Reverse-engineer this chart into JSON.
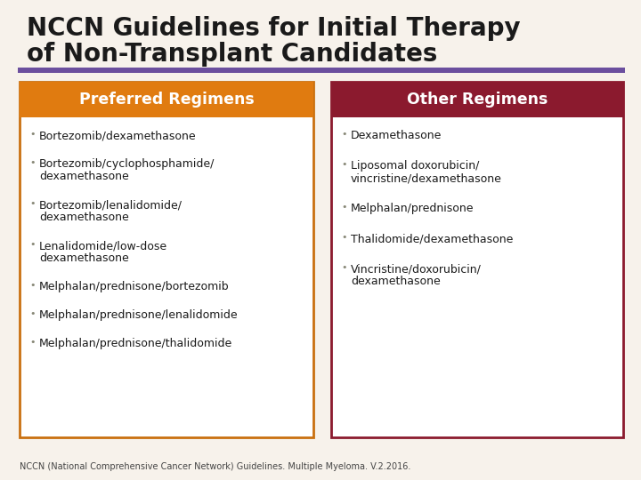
{
  "title_line1": "NCCN Guidelines for Initial Therapy",
  "title_line2": "of Non-Transplant Candidates",
  "bg_color": "#f7f2eb",
  "title_color": "#1a1a1a",
  "purple_bar_color": "#6b4f9e",
  "preferred_header": "Preferred Regimens",
  "other_header": "Other Regimens",
  "preferred_header_bg": "#e07b10",
  "other_header_bg": "#8b1a2e",
  "preferred_border": "#c97010",
  "other_border": "#8b1a2e",
  "preferred_items": [
    "Bortezomib/dexamethasone",
    "Bortezomib/cyclophosphamide/\ndexamethasone",
    "Bortezomib/lenalidomide/\ndexamethasone",
    "Lenalidomide/low-dose\ndexamethasone",
    "Melphalan/prednisone/bortezomib",
    "Melphalan/prednisone/lenalidomide",
    "Melphalan/prednisone/thalidomide"
  ],
  "other_items": [
    "Dexamethasone",
    "Liposomal doxorubicin/\nvincristine/dexamethasone",
    "Melphalan/prednisone",
    "Thalidomide/dexamethasone",
    "Vincristine/doxorubicin/\ndexamethasone"
  ],
  "footer": "NCCN (National Comprehensive Cancer Network) Guidelines. Multiple Myeloma. V.2.2016.",
  "header_text_color": "#ffffff",
  "item_text_color": "#1a1a1a",
  "bullet_color": "#888877"
}
